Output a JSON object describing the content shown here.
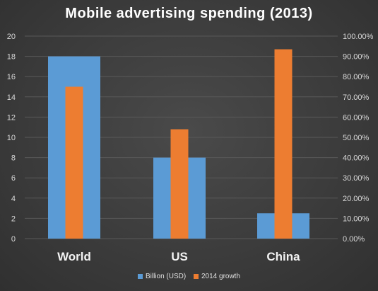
{
  "chart_data": {
    "type": "bar",
    "title": "Mobile advertising spending (2013)",
    "categories": [
      "World",
      "US",
      "China"
    ],
    "series": [
      {
        "name": "Billion (USD)",
        "axis": "left",
        "values": [
          18,
          8,
          2.5
        ],
        "color": "#5b9bd5"
      },
      {
        "name": "2014 growth",
        "axis": "right",
        "values": [
          0.75,
          0.54,
          0.935
        ],
        "color": "#ed7d31"
      }
    ],
    "y_left": {
      "min": 0,
      "max": 20,
      "step": 2,
      "ticks": [
        "0",
        "2",
        "4",
        "6",
        "8",
        "10",
        "12",
        "14",
        "16",
        "18",
        "20"
      ]
    },
    "y_right": {
      "min": 0,
      "max": 1.0,
      "step": 0.1,
      "ticks": [
        "0.00%",
        "10.00%",
        "20.00%",
        "30.00%",
        "40.00%",
        "50.00%",
        "60.00%",
        "70.00%",
        "80.00%",
        "90.00%",
        "100.00%"
      ]
    },
    "grid": true,
    "legend_position": "bottom"
  }
}
